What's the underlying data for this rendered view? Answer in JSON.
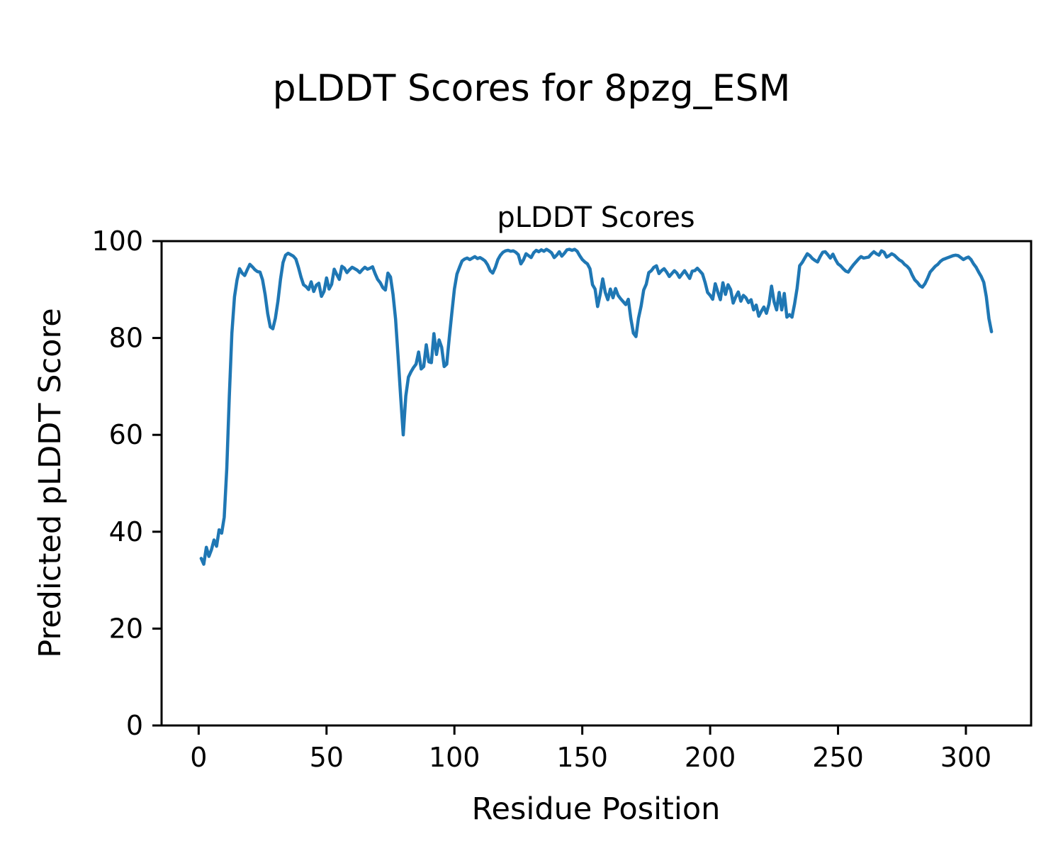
{
  "figure": {
    "suptitle": "pLDDT Scores for 8pzg_ESM",
    "background_color": "#ffffff",
    "text_color": "#000000"
  },
  "chart_data": {
    "type": "line",
    "title": "pLDDT Scores",
    "xlabel": "Residue Position",
    "ylabel": "Predicted pLDDT Score",
    "line_color": "#1f77b4",
    "grid": false,
    "legend": "none",
    "xlim": [
      -14.5,
      325.5
    ],
    "ylim": [
      0,
      100
    ],
    "xticks": [
      0,
      50,
      100,
      150,
      200,
      250,
      300
    ],
    "yticks": [
      0,
      20,
      40,
      60,
      80,
      100
    ],
    "x_start": 1,
    "values": [
      34.5,
      33.3,
      36.8,
      34.9,
      36.3,
      38.3,
      37.0,
      40.4,
      39.7,
      43.0,
      53.0,
      68.0,
      81.0,
      88.5,
      92.0,
      94.3,
      93.4,
      92.9,
      94.1,
      95.2,
      94.7,
      94.1,
      93.7,
      93.6,
      92.0,
      88.9,
      85.0,
      82.3,
      81.9,
      84.1,
      87.6,
      92.1,
      95.6,
      97.1,
      97.5,
      97.2,
      96.9,
      96.3,
      94.6,
      92.6,
      91.0,
      90.6,
      90.0,
      91.6,
      89.6,
      90.9,
      91.3,
      88.6,
      89.6,
      92.4,
      90.1,
      91.1,
      94.2,
      93.1,
      92.1,
      94.8,
      94.4,
      93.5,
      94.1,
      94.6,
      94.3,
      94.0,
      93.5,
      94.1,
      94.6,
      94.2,
      94.4,
      94.7,
      93.3,
      92.1,
      91.4,
      90.4,
      89.9,
      93.4,
      92.6,
      89.0,
      83.9,
      76.0,
      67.8,
      60.0,
      68.0,
      71.9,
      73.0,
      73.9,
      74.6,
      77.1,
      73.6,
      74.1,
      78.6,
      75.1,
      74.9,
      80.9,
      76.6,
      79.6,
      78.1,
      74.1,
      74.6,
      80.1,
      85.2,
      90.1,
      93.2,
      94.6,
      95.9,
      96.3,
      96.5,
      96.2,
      96.5,
      96.8,
      96.4,
      96.6,
      96.3,
      95.9,
      95.1,
      93.9,
      93.4,
      94.6,
      96.2,
      97.1,
      97.7,
      98.0,
      98.1,
      97.9,
      98.0,
      97.7,
      97.2,
      95.3,
      96.1,
      97.4,
      97.0,
      96.6,
      97.6,
      98.1,
      97.8,
      98.2,
      97.9,
      98.3,
      98.0,
      97.6,
      96.6,
      97.1,
      97.8,
      96.9,
      97.5,
      98.2,
      98.3,
      98.1,
      98.3,
      97.9,
      97.0,
      96.2,
      95.7,
      95.3,
      94.3,
      91.0,
      90.1,
      86.5,
      89.0,
      92.2,
      89.4,
      87.9,
      90.1,
      88.3,
      90.2,
      88.8,
      88.1,
      87.5,
      86.9,
      88.0,
      84.0,
      81.0,
      80.3,
      84.1,
      86.6,
      89.9,
      91.1,
      93.5,
      93.9,
      94.6,
      94.9,
      93.3,
      93.9,
      94.3,
      93.6,
      92.7,
      93.3,
      93.9,
      93.4,
      92.5,
      93.2,
      93.9,
      93.1,
      92.3,
      93.8,
      93.9,
      94.4,
      93.8,
      93.2,
      91.5,
      89.4,
      88.8,
      88.0,
      91.2,
      89.5,
      87.9,
      91.4,
      89.0,
      91.0,
      90.0,
      87.2,
      88.5,
      89.5,
      87.6,
      88.8,
      88.3,
      87.3,
      87.9,
      85.8,
      86.8,
      84.5,
      85.5,
      86.4,
      85.1,
      87.0,
      90.7,
      87.5,
      85.8,
      89.4,
      85.8,
      89.2,
      84.3,
      84.8,
      84.3,
      87.0,
      90.3,
      94.9,
      95.6,
      96.5,
      97.4,
      97.0,
      96.4,
      96.0,
      95.7,
      96.8,
      97.7,
      97.8,
      97.2,
      96.5,
      97.3,
      96.2,
      95.3,
      94.9,
      94.3,
      93.8,
      93.6,
      94.4,
      95.1,
      95.7,
      96.3,
      96.8,
      96.5,
      96.6,
      96.7,
      97.3,
      97.8,
      97.4,
      97.1,
      98.0,
      97.7,
      96.7,
      97.0,
      97.4,
      97.1,
      96.6,
      96.1,
      95.8,
      95.2,
      94.8,
      94.2,
      93.0,
      92.0,
      91.5,
      90.8,
      90.5,
      91.2,
      92.3,
      93.6,
      94.2,
      94.8,
      95.2,
      95.8,
      96.2,
      96.4,
      96.6,
      96.8,
      97.0,
      97.1,
      97.0,
      96.6,
      96.2,
      96.5,
      96.7,
      96.2,
      95.3,
      94.6,
      93.6,
      92.7,
      91.5,
      88.5,
      84.0,
      81.3
    ]
  }
}
